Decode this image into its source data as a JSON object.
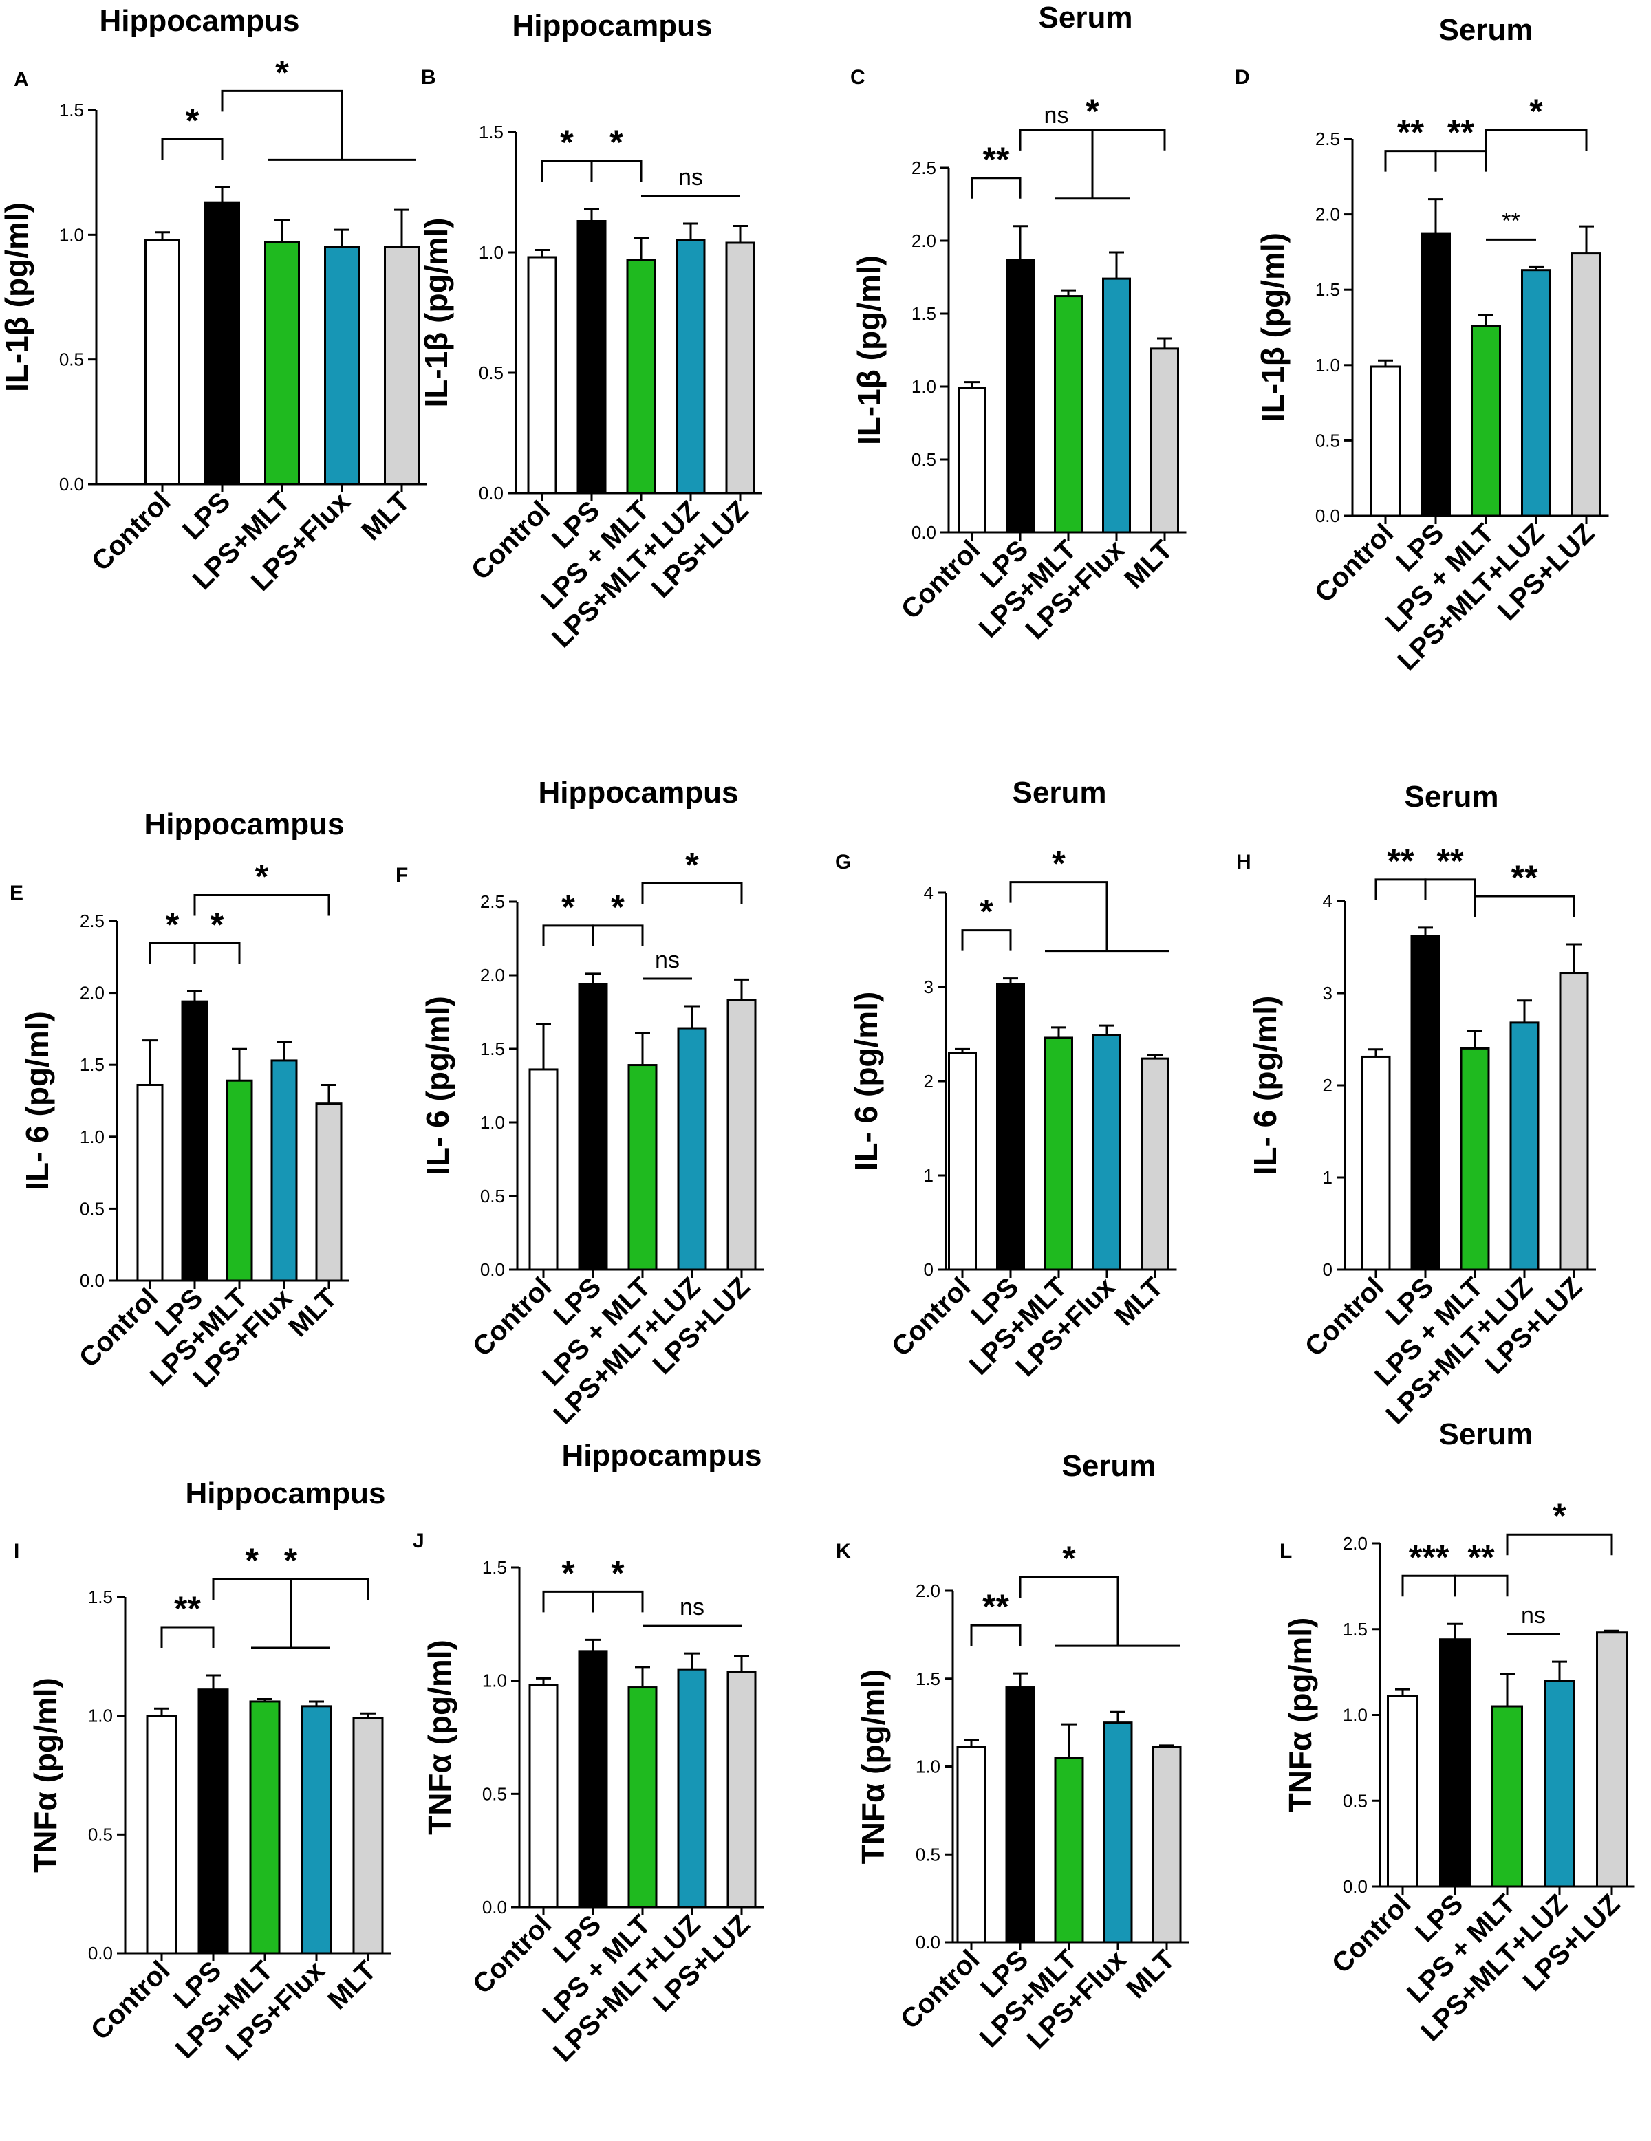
{
  "figure": {
    "colors": {
      "Control": "#ffffff",
      "LPS": "#000000",
      "LPS+MLT": "#1fba1f",
      "LPS + MLT": "#1fba1f",
      "LPS+Flux": "#1796b5",
      "LPS+MLT+LUZ": "#1796b5",
      "MLT": "#d3d3d3",
      "LPS+LUZ": "#d3d3d3"
    }
  },
  "chart_data": [
    {
      "id": "A",
      "type": "bar",
      "title": "Hippocampus",
      "ylabel": "IL-1β (pg/ml)",
      "categories": [
        "Control",
        "LPS",
        "LPS+MLT",
        "LPS+Flux",
        "MLT"
      ],
      "values": [
        0.98,
        1.13,
        0.97,
        0.95,
        0.95
      ],
      "errors": [
        0.03,
        0.06,
        0.09,
        0.07,
        0.15
      ],
      "ylim": [
        0,
        1.5
      ],
      "yticks": [
        0.0,
        0.5,
        1.0,
        1.5
      ],
      "annotations": [
        {
          "type": "bracket",
          "from": 0,
          "to": 1,
          "label": "*"
        },
        {
          "type": "group",
          "from": 1,
          "to": [
            2,
            4
          ],
          "label": "*"
        }
      ]
    },
    {
      "id": "B",
      "type": "bar",
      "title": "Hippocampus",
      "ylabel": "IL-1β (pg/ml)",
      "categories": [
        "Control",
        "LPS",
        "LPS + MLT",
        "LPS+MLT+LUZ",
        "LPS+LUZ"
      ],
      "values": [
        0.98,
        1.13,
        0.97,
        1.05,
        1.04
      ],
      "errors": [
        0.03,
        0.05,
        0.09,
        0.07,
        0.07
      ],
      "ylim": [
        0,
        1.5
      ],
      "yticks": [
        0.0,
        0.5,
        1.0,
        1.5
      ],
      "annotations": [
        {
          "type": "bracket",
          "from": 0,
          "to": 1,
          "label": "*"
        },
        {
          "type": "bracket",
          "from": 1,
          "to": 2,
          "label": "*"
        },
        {
          "type": "line",
          "from": 2,
          "to": 4,
          "label": "ns"
        }
      ]
    },
    {
      "id": "C",
      "type": "bar",
      "title": "Serum",
      "ylabel": "IL-1β (pg/ml)",
      "categories": [
        "Control",
        "LPS",
        "LPS+MLT",
        "LPS+Flux",
        "MLT"
      ],
      "values": [
        0.99,
        1.87,
        1.62,
        1.74,
        1.26
      ],
      "errors": [
        0.04,
        0.23,
        0.04,
        0.18,
        0.07
      ],
      "ylim": [
        0,
        2.5
      ],
      "yticks": [
        0.0,
        0.5,
        1.0,
        1.5,
        2.0,
        2.5
      ],
      "annotations": [
        {
          "type": "bracket",
          "from": 0,
          "to": 1,
          "label": "**"
        },
        {
          "type": "group",
          "from": 1,
          "to": [
            2,
            3
          ],
          "label": "ns"
        },
        {
          "type": "bracket",
          "from": 1,
          "to": 4,
          "label": "*",
          "level": 2
        }
      ]
    },
    {
      "id": "D",
      "type": "bar",
      "title": "Serum",
      "ylabel": "IL-1β (pg/ml)",
      "categories": [
        "Control",
        "LPS",
        "LPS + MLT",
        "LPS+MLT+LUZ",
        "LPS+LUZ"
      ],
      "values": [
        0.99,
        1.87,
        1.26,
        1.63,
        1.74
      ],
      "errors": [
        0.04,
        0.23,
        0.07,
        0.02,
        0.18
      ],
      "ylim": [
        0,
        2.5
      ],
      "yticks": [
        0.0,
        0.5,
        1.0,
        1.5,
        2.0,
        2.5
      ],
      "annotations": [
        {
          "type": "bracket",
          "from": 0,
          "to": 1,
          "label": "**"
        },
        {
          "type": "bracket",
          "from": 1,
          "to": 2,
          "label": "**"
        },
        {
          "type": "line",
          "from": 2,
          "to": 3,
          "label": "**"
        },
        {
          "type": "bracket",
          "from": 2,
          "to": 4,
          "label": "*",
          "level": 2
        }
      ]
    },
    {
      "id": "E",
      "type": "bar",
      "title": "Hippocampus",
      "ylabel": "IL- 6 (pg/ml)",
      "categories": [
        "Control",
        "LPS",
        "LPS+MLT",
        "LPS+Flux",
        "MLT"
      ],
      "values": [
        1.36,
        1.94,
        1.39,
        1.53,
        1.23
      ],
      "errors": [
        0.31,
        0.07,
        0.22,
        0.13,
        0.13
      ],
      "ylim": [
        0,
        2.5
      ],
      "yticks": [
        0.0,
        0.5,
        1.0,
        1.5,
        2.0,
        2.5
      ],
      "annotations": [
        {
          "type": "bracket",
          "from": 0,
          "to": 1,
          "label": "*"
        },
        {
          "type": "bracket",
          "from": 1,
          "to": 2,
          "label": "*"
        },
        {
          "type": "bracket",
          "from": 1,
          "to": 4,
          "label": "*",
          "level": 2
        }
      ]
    },
    {
      "id": "F",
      "type": "bar",
      "title": "Hippocampus",
      "ylabel": "IL- 6 (pg/ml)",
      "categories": [
        "Control",
        "LPS",
        "LPS + MLT",
        "LPS+MLT+LUZ",
        "LPS+LUZ"
      ],
      "values": [
        1.36,
        1.94,
        1.39,
        1.64,
        1.83
      ],
      "errors": [
        0.31,
        0.07,
        0.22,
        0.15,
        0.14
      ],
      "ylim": [
        0,
        2.5
      ],
      "yticks": [
        0.0,
        0.5,
        1.0,
        1.5,
        2.0,
        2.5
      ],
      "annotations": [
        {
          "type": "bracket",
          "from": 0,
          "to": 1,
          "label": "*"
        },
        {
          "type": "bracket",
          "from": 1,
          "to": 2,
          "label": "*"
        },
        {
          "type": "line",
          "from": 2,
          "to": 3,
          "label": "ns"
        },
        {
          "type": "bracket",
          "from": 2,
          "to": 4,
          "label": "*",
          "level": 2
        }
      ]
    },
    {
      "id": "G",
      "type": "bar",
      "title": "Serum",
      "ylabel": "IL- 6 (pg/ml)",
      "categories": [
        "Control",
        "LPS",
        "LPS+MLT",
        "LPS+Flux",
        "MLT"
      ],
      "values": [
        2.3,
        3.03,
        2.46,
        2.49,
        2.24
      ],
      "errors": [
        0.04,
        0.06,
        0.11,
        0.1,
        0.04
      ],
      "ylim": [
        0,
        4
      ],
      "yticks": [
        0,
        1,
        2,
        3,
        4
      ],
      "annotations": [
        {
          "type": "bracket",
          "from": 0,
          "to": 1,
          "label": "*"
        },
        {
          "type": "group",
          "from": 1,
          "to": [
            2,
            4
          ],
          "label": "*"
        }
      ]
    },
    {
      "id": "H",
      "type": "bar",
      "title": "Serum",
      "ylabel": "IL- 6 (pg/ml)",
      "categories": [
        "Control",
        "LPS",
        "LPS + MLT",
        "LPS+MLT+LUZ",
        "LPS+LUZ"
      ],
      "values": [
        2.31,
        3.62,
        2.4,
        2.68,
        3.22
      ],
      "errors": [
        0.08,
        0.09,
        0.19,
        0.24,
        0.31
      ],
      "ylim": [
        0,
        4
      ],
      "yticks": [
        0,
        1,
        2,
        3,
        4
      ],
      "annotations": [
        {
          "type": "bracket",
          "from": 0,
          "to": 1,
          "label": "**"
        },
        {
          "type": "bracket",
          "from": 1,
          "to": 2,
          "label": "**"
        },
        {
          "type": "bracket",
          "from": 2,
          "to": 4,
          "label": "**"
        }
      ]
    },
    {
      "id": "I",
      "type": "bar",
      "title": "Hippocampus",
      "ylabel": "TNFα (pg/ml)",
      "categories": [
        "Control",
        "LPS",
        "LPS+MLT",
        "LPS+Flux",
        "MLT"
      ],
      "values": [
        1.0,
        1.11,
        1.06,
        1.04,
        0.99
      ],
      "errors": [
        0.03,
        0.06,
        0.01,
        0.02,
        0.02
      ],
      "ylim": [
        0,
        1.5
      ],
      "yticks": [
        0.0,
        0.5,
        1.0,
        1.5
      ],
      "annotations": [
        {
          "type": "bracket",
          "from": 0,
          "to": 1,
          "label": "**"
        },
        {
          "type": "group",
          "from": 1,
          "to": [
            2,
            3
          ],
          "label": "*"
        },
        {
          "type": "bracket",
          "from": 1,
          "to": 4,
          "label": "*",
          "level": 2
        }
      ]
    },
    {
      "id": "J",
      "type": "bar",
      "title": "Hippocampus",
      "ylabel": "TNFα (pg/ml)",
      "categories": [
        "Control",
        "LPS",
        "LPS + MLT",
        "LPS+MLT+LUZ",
        "LPS+LUZ"
      ],
      "values": [
        0.98,
        1.13,
        0.97,
        1.05,
        1.04
      ],
      "errors": [
        0.03,
        0.05,
        0.09,
        0.07,
        0.07
      ],
      "ylim": [
        0,
        1.5
      ],
      "yticks": [
        0.0,
        0.5,
        1.0,
        1.5
      ],
      "annotations": [
        {
          "type": "bracket",
          "from": 0,
          "to": 1,
          "label": "*"
        },
        {
          "type": "bracket",
          "from": 1,
          "to": 2,
          "label": "*"
        },
        {
          "type": "line",
          "from": 2,
          "to": 4,
          "label": "ns"
        }
      ]
    },
    {
      "id": "K",
      "type": "bar",
      "title": "Serum",
      "ylabel": "TNFα (pg/ml)",
      "categories": [
        "Control",
        "LPS",
        "LPS+MLT",
        "LPS+Flux",
        "MLT"
      ],
      "values": [
        1.11,
        1.45,
        1.05,
        1.25,
        1.11
      ],
      "errors": [
        0.04,
        0.08,
        0.19,
        0.06,
        0.01
      ],
      "ylim": [
        0,
        2.0
      ],
      "yticks": [
        0.0,
        0.5,
        1.0,
        1.5,
        2.0
      ],
      "annotations": [
        {
          "type": "bracket",
          "from": 0,
          "to": 1,
          "label": "**"
        },
        {
          "type": "group",
          "from": 1,
          "to": [
            2,
            4
          ],
          "label": "*"
        }
      ]
    },
    {
      "id": "L",
      "type": "bar",
      "title": "Serum",
      "ylabel": "TNFα (pg/ml)",
      "categories": [
        "Control",
        "LPS",
        "LPS + MLT",
        "LPS+MLT+LUZ",
        "LPS+LUZ"
      ],
      "values": [
        1.11,
        1.44,
        1.05,
        1.2,
        1.48
      ],
      "errors": [
        0.04,
        0.09,
        0.19,
        0.11,
        0.01
      ],
      "ylim": [
        0,
        2.0
      ],
      "yticks": [
        0.0,
        0.5,
        1.0,
        1.5,
        2.0
      ],
      "annotations": [
        {
          "type": "bracket",
          "from": 0,
          "to": 1,
          "label": "***"
        },
        {
          "type": "bracket",
          "from": 1,
          "to": 2,
          "label": "**"
        },
        {
          "type": "line",
          "from": 2,
          "to": 3,
          "label": "ns"
        },
        {
          "type": "bracket",
          "from": 2,
          "to": 4,
          "label": "*",
          "level": 2
        }
      ]
    }
  ]
}
